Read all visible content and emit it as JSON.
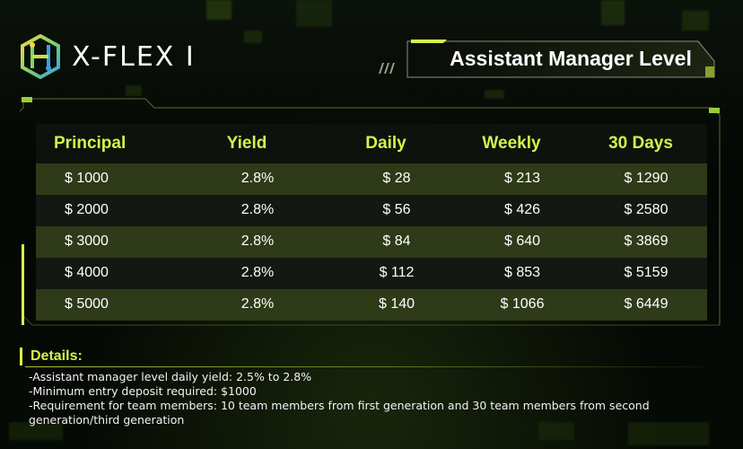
{
  "brand": {
    "name": "X-FLEX I"
  },
  "banner": {
    "title": "Assistant Manager Level"
  },
  "table": {
    "headers": [
      "Principal",
      "Yield",
      "Daily",
      "Weekly",
      "30 Days"
    ],
    "rows": [
      [
        "$ 1000",
        "2.8%",
        "$ 28",
        "$ 213",
        "$ 1290"
      ],
      [
        "$ 2000",
        "2.8%",
        "$ 56",
        "$ 426",
        "$ 2580"
      ],
      [
        "$ 3000",
        "2.8%",
        "$ 84",
        "$ 640",
        "$ 3869"
      ],
      [
        "$ 4000",
        "2.8%",
        "$ 112",
        "$ 853",
        "$ 5159"
      ],
      [
        "$ 5000",
        "2.8%",
        "$ 140",
        "$ 1066",
        "$ 6449"
      ]
    ]
  },
  "details": {
    "title": "Details:",
    "lines": [
      "-Assistant manager level daily yield: 2.5% to 2.8%",
      "-Minimum entry deposit required: $1000",
      "-Requirement for team members: 10 team members from first generation and 30 team members from second",
      " generation/third generation"
    ]
  },
  "colors": {
    "accent": "#d6f24a",
    "row_odd": "#2e3a18",
    "row_even": "#141812",
    "background": "#050805"
  },
  "icons": {
    "logo": "circuit-hexagon-logo-icon"
  }
}
